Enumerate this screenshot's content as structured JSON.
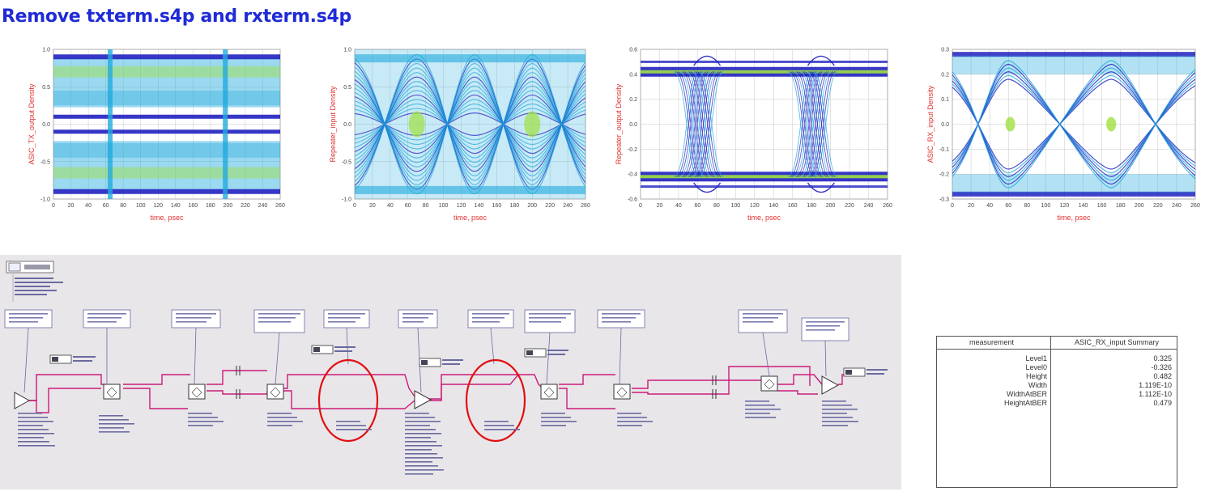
{
  "title": "Remove txterm.s4p and rxterm.s4p",
  "colors": {
    "title": "#1f2bd6",
    "axis_label": "#e03030",
    "eye_dense": "#2020c0",
    "eye_mid": "#22aadd",
    "eye_hot": "#a0e040",
    "wire": "#cc1b78",
    "circle": "#e01010"
  },
  "chart_data": [
    {
      "type": "heatmap",
      "ylabel": "ASIC_TX_output Density",
      "xlabel": "time, psec",
      "xticks": [
        "0",
        "20",
        "40",
        "60",
        "80",
        "100",
        "120",
        "140",
        "160",
        "180",
        "200",
        "220",
        "240",
        "260"
      ],
      "yticks": [
        "1.0",
        "0.5",
        "0.0",
        "-0.5",
        "-1.0"
      ],
      "xlim": [
        0,
        260
      ],
      "ylim": [
        -1.0,
        1.0
      ],
      "grid": true
    },
    {
      "type": "heatmap",
      "ylabel": "Repeater_input Density",
      "xlabel": "time, psec",
      "xticks": [
        "0",
        "20",
        "40",
        "60",
        "80",
        "100",
        "120",
        "140",
        "160",
        "180",
        "200",
        "220",
        "240",
        "260"
      ],
      "yticks": [
        "1.0",
        "0.5",
        "0.0",
        "-0.5",
        "-1.0"
      ],
      "xlim": [
        0,
        260
      ],
      "ylim": [
        -1.0,
        1.0
      ],
      "grid": true
    },
    {
      "type": "heatmap",
      "ylabel": "Repeater_output Density",
      "xlabel": "time, psec",
      "xticks": [
        "0",
        "20",
        "40",
        "60",
        "80",
        "100",
        "120",
        "140",
        "160",
        "180",
        "200",
        "220",
        "240",
        "260"
      ],
      "yticks": [
        "0.6",
        "0.4",
        "0.2",
        "0.0",
        "-0.2",
        "-0.4",
        "-0.6"
      ],
      "xlim": [
        0,
        260
      ],
      "ylim": [
        -0.6,
        0.6
      ],
      "grid": true
    },
    {
      "type": "heatmap",
      "ylabel": "ASIC_RX_input Density",
      "xlabel": "time, psec",
      "xticks": [
        "0",
        "20",
        "40",
        "60",
        "80",
        "100",
        "120",
        "140",
        "160",
        "180",
        "200",
        "220",
        "240",
        "260"
      ],
      "yticks": [
        "0.3",
        "0.2",
        "0.1",
        "0.0",
        "-0.1",
        "-0.2",
        "-0.3"
      ],
      "xlim": [
        0,
        260
      ],
      "ylim": [
        -0.3,
        0.3
      ],
      "grid": true
    }
  ],
  "summary": {
    "col1": "measurement",
    "col2": "ASIC_RX_input Summary",
    "rows": [
      {
        "name": "Level1",
        "value": "0.325"
      },
      {
        "name": "Level0",
        "value": "-0.326"
      },
      {
        "name": "Height",
        "value": "0.482"
      },
      {
        "name": "Width",
        "value": "1.119E-10"
      },
      {
        "name": "WidthAtBER",
        "value": "1.112E-10"
      },
      {
        "name": "HeightAtBER",
        "value": "0.479"
      }
    ]
  }
}
